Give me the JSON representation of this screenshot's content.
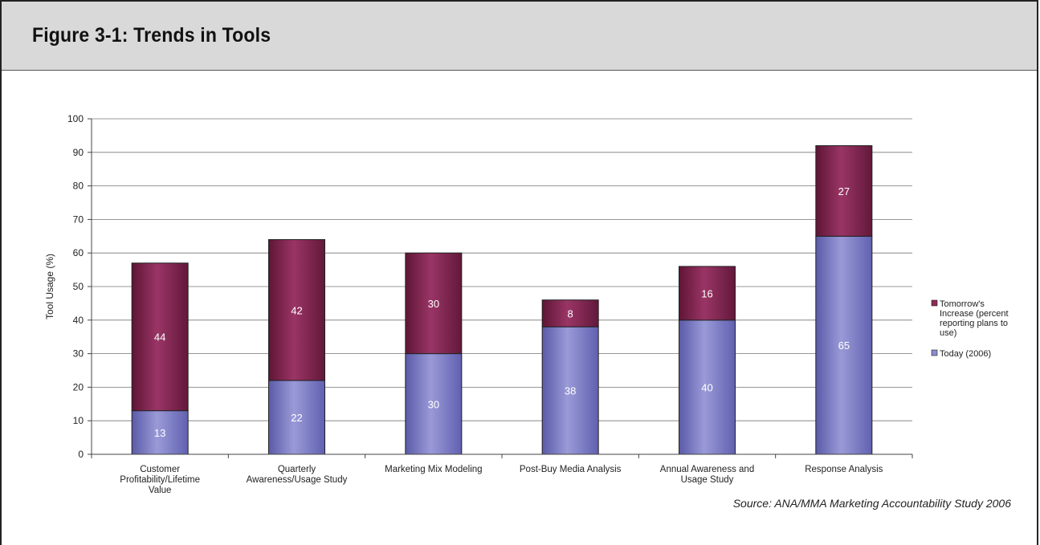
{
  "header": {
    "title": "Figure 3-1: Trends in Tools"
  },
  "source_note": "Source: ANA/MMA Marketing Accountability Study 2006",
  "chart_data": {
    "type": "bar",
    "stacked": true,
    "title": "",
    "xlabel": "",
    "ylabel": "Tool Usage (%)",
    "ylim": [
      0,
      100
    ],
    "yticks": [
      0,
      10,
      20,
      30,
      40,
      50,
      60,
      70,
      80,
      90,
      100
    ],
    "grid": true,
    "legend_position": "right",
    "categories": [
      [
        "Customer",
        "Profitability/Lifetime",
        "Value"
      ],
      [
        "Quarterly",
        "Awareness/Usage Study"
      ],
      [
        "Marketing Mix Modeling"
      ],
      [
        "Post-Buy Media Analysis"
      ],
      [
        "Annual Awareness and",
        "Usage Study"
      ],
      [
        "Response Analysis"
      ]
    ],
    "series": [
      {
        "name": "Today (2006)",
        "values": [
          13,
          22,
          30,
          38,
          40,
          65
        ],
        "color": "#8c8cd0"
      },
      {
        "name": "Tomorrow's Increase (percent reporting plans to use)",
        "values": [
          44,
          42,
          30,
          8,
          16,
          27
        ],
        "color": "#8c2a55"
      }
    ],
    "legend_lines": {
      "tomorrow": [
        "Tomorrow's",
        "Increase (percent",
        "reporting plans to",
        "use)"
      ],
      "today": [
        "Today (2006)"
      ]
    }
  }
}
